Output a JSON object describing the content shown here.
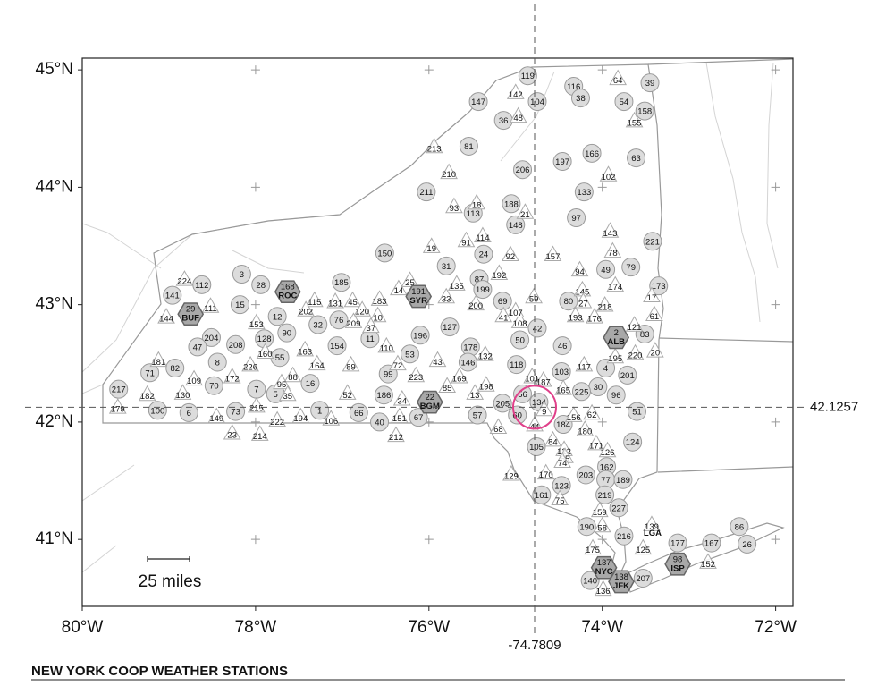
{
  "title": "NEW YORK COOP WEATHER STATIONS",
  "scale_bar_label": "25 miles",
  "axes": {
    "xlim": [
      -80,
      -71.8
    ],
    "ylim": [
      40.43,
      45.1
    ],
    "xticks": [
      {
        "value": -80,
        "label": "80°W"
      },
      {
        "value": -78,
        "label": "78°W"
      },
      {
        "value": -76,
        "label": "76°W"
      },
      {
        "value": -74,
        "label": "74°W"
      },
      {
        "value": -72,
        "label": "72°W"
      }
    ],
    "yticks": [
      {
        "value": 45,
        "label": "45°N"
      },
      {
        "value": 44,
        "label": "44°N"
      },
      {
        "value": 43,
        "label": "43°N"
      },
      {
        "value": 42,
        "label": "42°N"
      },
      {
        "value": 41,
        "label": "41°N"
      }
    ]
  },
  "crosshair": {
    "lon": -74.7809,
    "lat": 42.1257
  },
  "stations": [
    {
      "shape": "circle",
      "ids": [
        "119",
        "116",
        "39",
        "147",
        "104",
        "38",
        "54",
        "158",
        "36",
        "81",
        "206",
        "197",
        "166",
        "63",
        "211",
        "133",
        "188",
        "113",
        "148",
        "97",
        "221",
        "150",
        "24",
        "31",
        "49",
        "79",
        "3",
        "28",
        "112",
        "141",
        "185",
        "87",
        "199",
        "69",
        "80",
        "15",
        "173",
        "12",
        "32",
        "76",
        "90",
        "196",
        "127",
        "42",
        "50",
        "11",
        "128",
        "204",
        "47",
        "208",
        "154",
        "46",
        "83",
        "178",
        "53",
        "55",
        "8",
        "146",
        "118",
        "4",
        "201",
        "103",
        "82",
        "71",
        "99",
        "16",
        "70",
        "7",
        "5",
        "186",
        "30",
        "96",
        "217",
        "205",
        "1",
        "66",
        "100",
        "6",
        "57",
        "60",
        "51",
        "67",
        "40",
        "184",
        "124",
        "105",
        "162",
        "203",
        "77",
        "189",
        "123",
        "161",
        "219",
        "227",
        "190",
        "216",
        "86",
        "177",
        "167",
        "26",
        "207",
        "140",
        "56",
        "134",
        "73",
        "225"
      ],
      "lon": [
        -74.86,
        -74.33,
        -73.45,
        -75.43,
        -74.75,
        -74.25,
        -73.75,
        -73.51,
        -75.14,
        -75.54,
        -74.92,
        -74.46,
        -74.12,
        -73.61,
        -76.03,
        -74.21,
        -75.05,
        -75.49,
        -75,
        -74.3,
        -73.42,
        -76.51,
        -75.37,
        -75.8,
        -73.96,
        -73.67,
        -78.16,
        -77.94,
        -78.62,
        -78.96,
        -77.01,
        -75.42,
        -75.38,
        -75.15,
        -74.39,
        -78.18,
        -73.35,
        -77.75,
        -77.28,
        -77.04,
        -77.64,
        -76.1,
        -75.76,
        -74.75,
        -74.95,
        -76.68,
        -77.9,
        -78.51,
        -78.67,
        -78.23,
        -77.06,
        -74.46,
        -73.51,
        -75.52,
        -76.22,
        -77.72,
        -78.44,
        -75.55,
        -74.99,
        -73.96,
        -73.71,
        -74.47,
        -78.93,
        -79.22,
        -76.47,
        -77.37,
        -78.48,
        -77.99,
        -77.77,
        -76.52,
        -74.05,
        -73.84,
        -79.58,
        -75.15,
        -77.26,
        -76.81,
        -79.13,
        -78.77,
        -75.44,
        -74.98,
        -73.6,
        -76.12,
        -76.57,
        -74.45,
        -73.65,
        -74.76,
        -73.95,
        -74.19,
        -73.96,
        -73.76,
        -74.47,
        -74.7,
        -73.97,
        -73.81,
        -74.18,
        -73.75,
        -72.42,
        -73.13,
        -72.74,
        -72.33,
        -73.53,
        -74.14,
        -74.92,
        -74.73,
        -78.23,
        -74.24
      ],
      "lat": [
        44.95,
        44.86,
        44.89,
        44.73,
        44.73,
        44.76,
        44.73,
        44.65,
        44.57,
        44.35,
        44.15,
        44.22,
        44.29,
        44.25,
        43.96,
        43.96,
        43.86,
        43.78,
        43.68,
        43.74,
        43.54,
        43.44,
        43.43,
        43.33,
        43.3,
        43.32,
        43.26,
        43.17,
        43.17,
        43.08,
        43.19,
        43.22,
        43.13,
        43.03,
        43.03,
        43.0,
        43.16,
        42.9,
        42.83,
        42.87,
        42.76,
        42.74,
        42.81,
        42.8,
        42.7,
        42.71,
        42.71,
        42.72,
        42.64,
        42.66,
        42.65,
        42.65,
        42.75,
        42.64,
        42.58,
        42.55,
        42.51,
        42.51,
        42.49,
        42.46,
        42.4,
        42.43,
        42.46,
        42.42,
        42.41,
        42.33,
        42.31,
        42.28,
        42.24,
        42.23,
        42.3,
        42.23,
        42.28,
        42.16,
        42.1,
        42.08,
        42.1,
        42.08,
        42.06,
        42.06,
        42.09,
        42.04,
        42.0,
        41.98,
        41.83,
        41.79,
        41.62,
        41.55,
        41.51,
        41.51,
        41.46,
        41.38,
        41.38,
        41.27,
        41.11,
        41.03,
        41.11,
        40.97,
        40.97,
        40.96,
        40.67,
        40.65,
        42.24,
        42.17,
        42.09,
        42.26
      ]
    },
    {
      "shape": "triangle",
      "ids": [
        "224",
        "153",
        "115",
        "202",
        "131",
        "45",
        "120",
        "183",
        "10",
        "37",
        "209",
        "14",
        "25",
        "135",
        "33",
        "200",
        "41",
        "108",
        "107",
        "59",
        "92",
        "157",
        "94",
        "145",
        "27",
        "193",
        "176",
        "218",
        "17",
        "61",
        "121",
        "174",
        "78",
        "143",
        "102",
        "64",
        "142",
        "48",
        "155",
        "213",
        "210",
        "93",
        "18",
        "21",
        "91",
        "114",
        "19",
        "111",
        "144",
        "110",
        "72",
        "163",
        "164",
        "89",
        "160",
        "226",
        "172",
        "88",
        "95",
        "35",
        "181",
        "109",
        "182",
        "179",
        "52",
        "43",
        "223",
        "85",
        "169",
        "198",
        "132",
        "101",
        "187",
        "165",
        "117",
        "195",
        "220",
        "20",
        "62",
        "44",
        "9",
        "156",
        "180",
        "84",
        "122",
        "65",
        "171",
        "126",
        "74",
        "170",
        "129",
        "75",
        "159",
        "58",
        "139",
        "175",
        "125",
        "152",
        "136",
        "34",
        "215",
        "222",
        "194",
        "106",
        "149",
        "23",
        "214",
        "212",
        "151",
        "68",
        "13",
        "130",
        "192"
      ],
      "lon": [
        -78.82,
        -77.99,
        -77.32,
        -77.42,
        -77.08,
        -76.88,
        -76.77,
        -76.57,
        -76.59,
        -76.67,
        -76.87,
        -76.35,
        -76.22,
        -75.68,
        -75.8,
        -75.46,
        -75.14,
        -74.95,
        -75,
        -74.79,
        -75.06,
        -74.57,
        -74.26,
        -74.23,
        -74.22,
        -74.31,
        -74.09,
        -73.97,
        -73.43,
        -73.4,
        -73.63,
        -73.85,
        -73.88,
        -73.91,
        -73.93,
        -73.82,
        -75,
        -74.97,
        -73.63,
        -75.94,
        -75.77,
        -75.71,
        -75.45,
        -74.89,
        -75.57,
        -75.38,
        -75.97,
        -78.52,
        -79.03,
        -76.49,
        -76.36,
        -77.43,
        -77.29,
        -76.9,
        -77.89,
        -78.06,
        -78.27,
        -77.57,
        -77.7,
        -77.63,
        -79.12,
        -78.71,
        -79.25,
        -79.59,
        -76.94,
        -75.9,
        -76.15,
        -75.79,
        -75.65,
        -75.34,
        -75.35,
        -74.81,
        -74.68,
        -74.45,
        -74.21,
        -73.85,
        -73.62,
        -73.39,
        -74.12,
        -74.78,
        -74.67,
        -74.33,
        -74.2,
        -74.57,
        -74.44,
        -74.43,
        -74.07,
        -73.94,
        -74.46,
        -74.65,
        -75.05,
        -74.49,
        -74.03,
        -74,
        -73.43,
        -74.11,
        -73.53,
        -72.78,
        -73.99,
        -76.31,
        -77.99,
        -77.75,
        -77.48,
        -77.13,
        -78.45,
        -78.27,
        -77.95,
        -76.38,
        -76.34,
        -75.2,
        -75.47,
        -78.84,
        -75.19
      ],
      "lat": [
        43.21,
        42.84,
        43.03,
        42.95,
        43.02,
        43.03,
        42.95,
        43.04,
        42.9,
        42.81,
        42.85,
        43.13,
        43.2,
        43.17,
        43.06,
        43.0,
        42.9,
        42.85,
        42.94,
        43.06,
        43.42,
        43.42,
        43.29,
        43.12,
        43.02,
        42.9,
        42.89,
        42.99,
        43.07,
        42.91,
        42.82,
        43.16,
        43.45,
        43.62,
        44.1,
        44.92,
        44.8,
        44.6,
        44.56,
        44.34,
        44.12,
        43.83,
        43.86,
        43.78,
        43.54,
        43.58,
        43.49,
        42.98,
        42.89,
        42.64,
        42.49,
        42.61,
        42.49,
        42.48,
        42.59,
        42.48,
        42.38,
        42.39,
        42.33,
        42.23,
        42.52,
        42.36,
        42.23,
        42.12,
        42.24,
        42.52,
        42.39,
        42.3,
        42.38,
        42.31,
        42.57,
        42.38,
        42.35,
        42.28,
        42.48,
        42.55,
        42.58,
        42.6,
        42.07,
        41.97,
        42.1,
        42.05,
        41.93,
        41.84,
        41.76,
        41.7,
        41.81,
        41.75,
        41.66,
        41.56,
        41.55,
        41.34,
        41.24,
        41.11,
        41.12,
        40.92,
        40.92,
        40.8,
        40.57,
        42.19,
        42.13,
        42.01,
        42.04,
        42.02,
        42.04,
        41.9,
        41.89,
        41.88,
        42.04,
        41.95,
        42.24,
        42.24,
        43.26
      ]
    },
    {
      "shape": "hexagon",
      "ids": [
        "168",
        "191",
        "29",
        "2",
        "22",
        "137",
        "138",
        "98"
      ],
      "codes": [
        "ROC",
        "SYR",
        "BUF",
        "ALB",
        "BGM",
        "NYC",
        "JFK",
        "ISP"
      ],
      "lon": [
        -77.63,
        -76.12,
        -78.75,
        -73.84,
        -75.99,
        -73.98,
        -73.78,
        -73.13
      ],
      "lat": [
        43.11,
        43.07,
        42.92,
        42.72,
        42.17,
        40.76,
        40.64,
        40.79
      ]
    }
  ],
  "text_labels": {
    "texts": [
      "LGA"
    ],
    "lon": [
      -73.42
    ],
    "lat": [
      41.05
    ]
  }
}
